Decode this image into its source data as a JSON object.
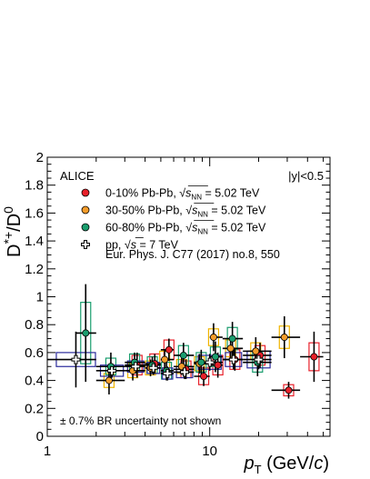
{
  "chart_data": {
    "type": "scatter",
    "experiment_label": "ALICE",
    "rapidity_label": "|y|<0.5",
    "y_axis": {
      "label_main": "D",
      "label_sup": "*+",
      "label_rest": "/D",
      "label_sup2": "0",
      "ylim": [
        0,
        2
      ],
      "ticks": [
        "0",
        "0.2",
        "0.4",
        "0.6",
        "0.8",
        "1",
        "1.2",
        "1.4",
        "1.6",
        "1.8",
        "2"
      ]
    },
    "x_axis": {
      "label_p": "p",
      "label_sub": "T",
      "label_unit_a": " (GeV/",
      "label_unit_c": "c",
      "label_unit_b": ")",
      "scale": "log",
      "xlim": [
        1,
        55
      ],
      "ticks": [
        {
          "value": 1,
          "label": "1"
        },
        {
          "value": 10,
          "label": "10"
        }
      ]
    },
    "legend": [
      {
        "text": "0-10% Pb-Pb, ",
        "energy": "5.02 TeV",
        "color": "#e8202a",
        "marker": "circle",
        "sqrt_sub": "NN"
      },
      {
        "text": "30-50% Pb-Pb, ",
        "energy": "5.02 TeV",
        "color": "#f39c2b",
        "marker": "circle",
        "sqrt_sub": "NN"
      },
      {
        "text": "60-80% Pb-Pb, ",
        "energy": "5.02 TeV",
        "color": "#1a9e6e",
        "marker": "circle",
        "sqrt_sub": "NN"
      },
      {
        "text": "pp, ",
        "energy": "7 TeV",
        "color": "#000000",
        "marker": "open-cross",
        "sqrt_sub": ""
      }
    ],
    "reference": "Eur. Phys. J. C77 (2017) no.8, 550",
    "note": "± 0.7% BR uncertainty not shown",
    "series": [
      {
        "name": "0-10% Pb-Pb",
        "color": "#e8202a",
        "box_color": "#e8202a",
        "marker": "filled",
        "points": [
          {
            "x": 3.5,
            "xlo": 3,
            "xhi": 4,
            "y": 0.51,
            "err": 0.09,
            "sys": 0.07
          },
          {
            "x": 4.5,
            "xlo": 4,
            "xhi": 5,
            "y": 0.52,
            "err": 0.07,
            "sys": 0.07
          },
          {
            "x": 5.5,
            "xlo": 5,
            "xhi": 6,
            "y": 0.62,
            "err": 0.08,
            "sys": 0.07
          },
          {
            "x": 7,
            "xlo": 6,
            "xhi": 8,
            "y": 0.48,
            "err": 0.07,
            "sys": 0.06
          },
          {
            "x": 9,
            "xlo": 8,
            "xhi": 10,
            "y": 0.43,
            "err": 0.07,
            "sys": 0.06
          },
          {
            "x": 11,
            "xlo": 10,
            "xhi": 12,
            "y": 0.51,
            "err": 0.09,
            "sys": 0.07
          },
          {
            "x": 14,
            "xlo": 12,
            "xhi": 16,
            "y": 0.55,
            "err": 0.08,
            "sys": 0.07
          },
          {
            "x": 20,
            "xlo": 16,
            "xhi": 24,
            "y": 0.58,
            "err": 0.09,
            "sys": 0.07
          },
          {
            "x": 30,
            "xlo": 24,
            "xhi": 36,
            "y": 0.33,
            "err": 0.06,
            "sys": 0.04
          },
          {
            "x": 43,
            "xlo": 36,
            "xhi": 50,
            "y": 0.57,
            "err": 0.18,
            "sys": 0.1
          }
        ]
      },
      {
        "name": "30-50% Pb-Pb",
        "color": "#f39c2b",
        "box_color": "#f0b400",
        "marker": "filled",
        "points": [
          {
            "x": 2.5,
            "xlo": 2,
            "xhi": 3,
            "y": 0.4,
            "err": 0.1,
            "sys": 0.05
          },
          {
            "x": 3.5,
            "xlo": 3,
            "xhi": 4,
            "y": 0.47,
            "err": 0.07,
            "sys": 0.05
          },
          {
            "x": 4.5,
            "xlo": 4,
            "xhi": 5,
            "y": 0.49,
            "err": 0.06,
            "sys": 0.05
          },
          {
            "x": 5.5,
            "xlo": 5,
            "xhi": 6,
            "y": 0.55,
            "err": 0.07,
            "sys": 0.06
          },
          {
            "x": 7,
            "xlo": 6,
            "xhi": 8,
            "y": 0.5,
            "err": 0.06,
            "sys": 0.05
          },
          {
            "x": 9,
            "xlo": 8,
            "xhi": 10,
            "y": 0.52,
            "err": 0.07,
            "sys": 0.05
          },
          {
            "x": 11,
            "xlo": 10,
            "xhi": 12,
            "y": 0.71,
            "err": 0.1,
            "sys": 0.06
          },
          {
            "x": 14,
            "xlo": 12,
            "xhi": 16,
            "y": 0.63,
            "err": 0.08,
            "sys": 0.06
          },
          {
            "x": 20,
            "xlo": 16,
            "xhi": 24,
            "y": 0.61,
            "err": 0.1,
            "sys": 0.06
          },
          {
            "x": 30,
            "xlo": 24,
            "xhi": 36,
            "y": 0.71,
            "err": 0.15,
            "sys": 0.08
          }
        ]
      },
      {
        "name": "60-80% Pb-Pb",
        "color": "#1a9e6e",
        "box_color": "#1a9e6e",
        "marker": "filled",
        "points": [
          {
            "x": 1.75,
            "xlo": 1.5,
            "xhi": 2,
            "y": 0.74,
            "err": 0.35,
            "sys": 0.22
          },
          {
            "x": 2.5,
            "xlo": 2,
            "xhi": 3,
            "y": 0.5,
            "err": 0.1,
            "sys": 0.06
          },
          {
            "x": 3.5,
            "xlo": 3,
            "xhi": 4,
            "y": 0.53,
            "err": 0.07,
            "sys": 0.06
          },
          {
            "x": 4.5,
            "xlo": 4,
            "xhi": 5,
            "y": 0.51,
            "err": 0.06,
            "sys": 0.06
          },
          {
            "x": 5.5,
            "xlo": 5,
            "xhi": 6,
            "y": 0.47,
            "err": 0.07,
            "sys": 0.06
          },
          {
            "x": 7,
            "xlo": 6,
            "xhi": 8,
            "y": 0.58,
            "err": 0.09,
            "sys": 0.07
          },
          {
            "x": 9,
            "xlo": 8,
            "xhi": 10,
            "y": 0.53,
            "err": 0.09,
            "sys": 0.07
          },
          {
            "x": 11,
            "xlo": 10,
            "xhi": 12,
            "y": 0.57,
            "err": 0.11,
            "sys": 0.07
          },
          {
            "x": 14,
            "xlo": 12,
            "xhi": 16,
            "y": 0.7,
            "err": 0.12,
            "sys": 0.08
          },
          {
            "x": 20,
            "xlo": 16,
            "xhi": 24,
            "y": 0.53,
            "err": 0.1,
            "sys": 0.07
          }
        ]
      },
      {
        "name": "pp",
        "color": "#000000",
        "box_color": "#2b2b9c",
        "marker": "open-cross",
        "points": [
          {
            "x": 1.5,
            "xlo": 1,
            "xhi": 2,
            "y": 0.55,
            "err": 0.2,
            "sys": 0.05
          },
          {
            "x": 2.5,
            "xlo": 2,
            "xhi": 3,
            "y": 0.47,
            "err": 0.05,
            "sys": 0.04
          },
          {
            "x": 3.5,
            "xlo": 3,
            "xhi": 4,
            "y": 0.5,
            "err": 0.05,
            "sys": 0.04
          },
          {
            "x": 4.5,
            "xlo": 4,
            "xhi": 5,
            "y": 0.49,
            "err": 0.05,
            "sys": 0.04
          },
          {
            "x": 5.5,
            "xlo": 5,
            "xhi": 6,
            "y": 0.45,
            "err": 0.05,
            "sys": 0.04
          },
          {
            "x": 7,
            "xlo": 6,
            "xhi": 8,
            "y": 0.46,
            "err": 0.05,
            "sys": 0.04
          },
          {
            "x": 10,
            "xlo": 8,
            "xhi": 12,
            "y": 0.53,
            "err": 0.06,
            "sys": 0.05
          },
          {
            "x": 14,
            "xlo": 12,
            "xhi": 16,
            "y": 0.55,
            "err": 0.07,
            "sys": 0.05
          },
          {
            "x": 20,
            "xlo": 16,
            "xhi": 24,
            "y": 0.55,
            "err": 0.07,
            "sys": 0.06
          }
        ]
      }
    ]
  }
}
